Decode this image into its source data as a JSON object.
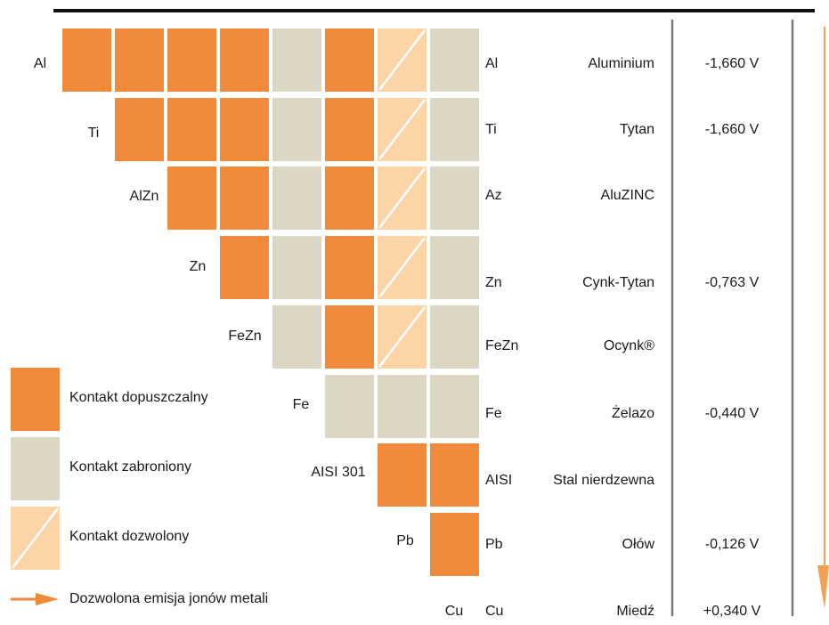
{
  "legend": [
    {
      "label": "Kontakt dopuszczalny",
      "color": "#f08a3a"
    },
    {
      "label": "Kontakt zabroniony",
      "color": "#dcd7c5"
    },
    {
      "label": "Kontakt dozwolony",
      "color": "#fdd4a6"
    }
  ],
  "arrow_legend": "Dozwolona emisja jonów metali",
  "rows": [
    {
      "left": "Al",
      "code": "Al",
      "name": "Aluminium",
      "potential": "-1,660 V",
      "contacts": [
        0,
        0,
        0,
        0,
        1,
        0,
        2,
        1
      ]
    },
    {
      "left": "Ti",
      "code": "Ti",
      "name": "Tytan",
      "potential": "-1,660 V",
      "contacts": [
        0,
        0,
        0,
        1,
        0,
        2,
        1
      ]
    },
    {
      "left": "AlZn",
      "code": "Az",
      "name": "AluZINC",
      "contacts": [
        0,
        0,
        1,
        0,
        2,
        1
      ]
    },
    {
      "left": "Zn",
      "code": "Zn",
      "name": "Cynk-Tytan",
      "potential": "-0,763 V",
      "contacts": [
        0,
        1,
        0,
        2,
        1
      ]
    },
    {
      "left": "FeZn",
      "code": "FeZn",
      "name": "Ocynk®",
      "contacts": [
        1,
        0,
        2,
        1
      ]
    },
    {
      "left": "Fe",
      "code": "Fe",
      "name": "Żelazo",
      "potential": "-0,440 V",
      "contacts": [
        1,
        1,
        1
      ]
    },
    {
      "left": "AISI 301",
      "code": "AISI",
      "name": "Stal nierdzewna",
      "contacts": [
        0,
        0
      ]
    },
    {
      "left": "Pb",
      "code": "Pb",
      "name": "Ołów",
      "potential": "-0,126 V",
      "contacts": [
        0
      ]
    },
    {
      "left": "Cu",
      "code": "Cu",
      "name": "Miedź",
      "potential": "+0,340 V",
      "contacts": []
    }
  ]
}
